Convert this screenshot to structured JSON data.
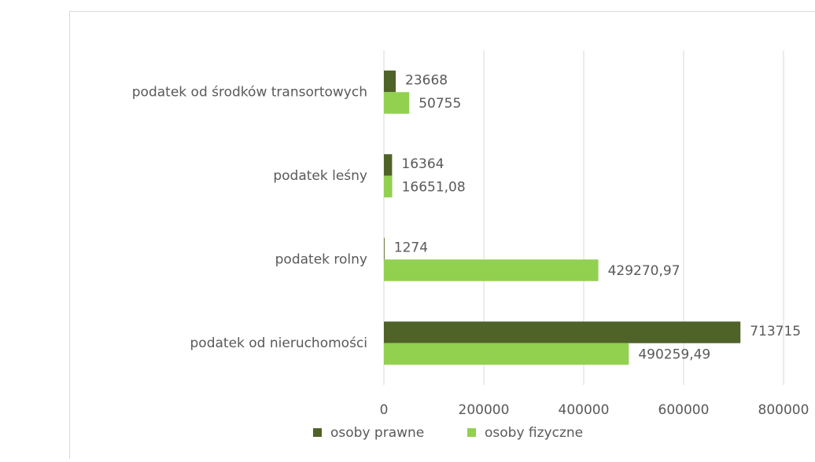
{
  "chart_data": {
    "type": "bar",
    "orientation": "horizontal",
    "categories": [
      "podatek od środków transortowych",
      "podatek leśny",
      "podatek rolny",
      "podatek od nieruchomości"
    ],
    "series": [
      {
        "name": "osoby prawne",
        "color": "#4f6228",
        "values": [
          23668,
          16364,
          1274,
          713715
        ]
      },
      {
        "name": "osoby fizyczne",
        "color": "#92d050",
        "values": [
          50755,
          16651.08,
          429270.97,
          490259.49
        ],
        "value_labels": [
          "50755",
          "16651,08",
          "429270,97",
          "490259,49"
        ]
      }
    ],
    "xlim": [
      0,
      800000
    ],
    "xticks": [
      0,
      200000,
      400000,
      600000,
      800000
    ],
    "grid": true,
    "legend": "bottom"
  }
}
